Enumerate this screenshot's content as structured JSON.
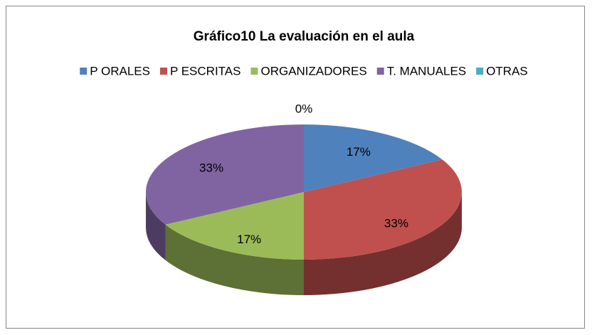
{
  "chart_data": {
    "type": "pie",
    "title": "Gráfico10 La evaluación en el aula",
    "categories": [
      "P ORALES",
      "P ESCRITAS",
      "ORGANIZADORES",
      "T. MANUALES",
      "OTRAS"
    ],
    "values": [
      17,
      33,
      17,
      33,
      0
    ],
    "value_labels": [
      "17%",
      "33%",
      "17%",
      "33%",
      "0%"
    ],
    "colors": [
      "#4f81bd",
      "#c0504d",
      "#9bbb59",
      "#8064a2",
      "#4bacc6"
    ],
    "legend": "top"
  }
}
